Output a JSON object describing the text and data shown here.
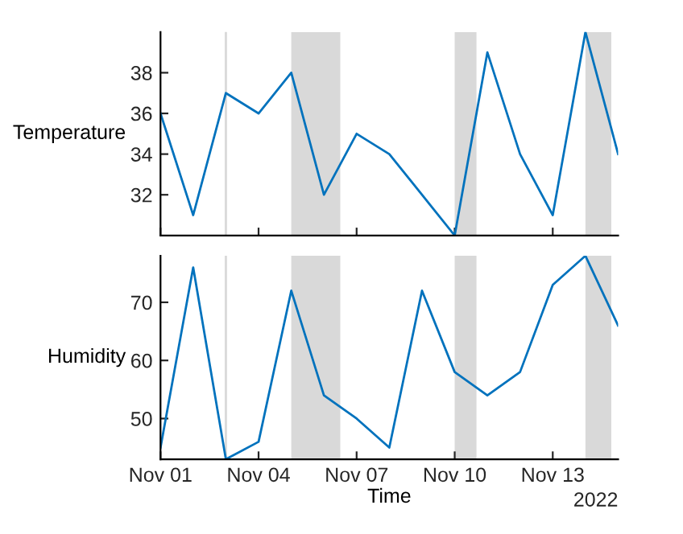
{
  "chart_data": [
    {
      "type": "line",
      "ylabel": "Temperature",
      "x": [
        "2022-11-01",
        "2022-11-02",
        "2022-11-03",
        "2022-11-04",
        "2022-11-05",
        "2022-11-06",
        "2022-11-07",
        "2022-11-08",
        "2022-11-09",
        "2022-11-10",
        "2022-11-11",
        "2022-11-12",
        "2022-11-13",
        "2022-11-14",
        "2022-11-15"
      ],
      "series": [
        {
          "color": "#0072bd",
          "values": [
            36,
            31,
            37,
            36,
            38,
            32,
            35,
            34,
            32,
            30,
            39,
            34,
            31,
            40,
            34
          ]
        }
      ],
      "xlim": [
        "2022-11-01",
        "2022-11-15"
      ],
      "xticks": [
        {
          "value": "2022-11-01",
          "label": null
        },
        {
          "value": "2022-11-04",
          "label": null
        },
        {
          "value": "2022-11-07",
          "label": null
        },
        {
          "value": "2022-11-10",
          "label": null
        },
        {
          "value": "2022-11-13",
          "label": null
        }
      ],
      "ylim": [
        30,
        40
      ],
      "yticks": [
        32,
        34,
        36,
        38
      ],
      "tick_labels": "y",
      "grid": false,
      "legend": false,
      "ref_lines": [
        {
          "axis": "x",
          "value": "2022-11-03",
          "color": "#d9d9d9"
        }
      ],
      "bands": [
        {
          "axis": "x",
          "from": "2022-11-05",
          "to": "2022-11-06T12:00",
          "color": "#d9d9d9"
        },
        {
          "axis": "x",
          "from": "2022-11-10",
          "to": "2022-11-10T16:00",
          "color": "#d9d9d9"
        },
        {
          "axis": "x",
          "from": "2022-11-14",
          "to": "2022-11-14T19:00",
          "color": "#d9d9d9"
        }
      ]
    },
    {
      "type": "line",
      "ylabel": "Humidity",
      "xlabel": "Time",
      "annotations": [
        "2022"
      ],
      "x": [
        "2022-11-01",
        "2022-11-02",
        "2022-11-03",
        "2022-11-04",
        "2022-11-05",
        "2022-11-06",
        "2022-11-07",
        "2022-11-08",
        "2022-11-09",
        "2022-11-10",
        "2022-11-11",
        "2022-11-12",
        "2022-11-13",
        "2022-11-14",
        "2022-11-15"
      ],
      "series": [
        {
          "color": "#0072bd",
          "values": [
            45,
            76,
            43,
            46,
            72,
            54,
            50,
            45,
            72,
            58,
            54,
            58,
            73,
            78,
            66
          ]
        }
      ],
      "xlim": [
        "2022-11-01",
        "2022-11-15"
      ],
      "xticks": [
        {
          "value": "2022-11-01",
          "label": "Nov 01"
        },
        {
          "value": "2022-11-04",
          "label": "Nov 04"
        },
        {
          "value": "2022-11-07",
          "label": "Nov 07"
        },
        {
          "value": "2022-11-10",
          "label": "Nov 10"
        },
        {
          "value": "2022-11-13",
          "label": "Nov 13"
        }
      ],
      "ylim": [
        43,
        78
      ],
      "yticks": [
        50,
        60,
        70
      ],
      "grid": false,
      "legend": false,
      "ref_lines": [
        {
          "axis": "x",
          "value": "2022-11-03",
          "color": "#d9d9d9"
        }
      ],
      "bands": [
        {
          "axis": "x",
          "from": "2022-11-05",
          "to": "2022-11-06T12:00",
          "color": "#d9d9d9"
        },
        {
          "axis": "x",
          "from": "2022-11-10",
          "to": "2022-11-10T16:00",
          "color": "#d9d9d9"
        },
        {
          "axis": "x",
          "from": "2022-11-14",
          "to": "2022-11-14T19:00",
          "color": "#d9d9d9"
        }
      ]
    }
  ]
}
